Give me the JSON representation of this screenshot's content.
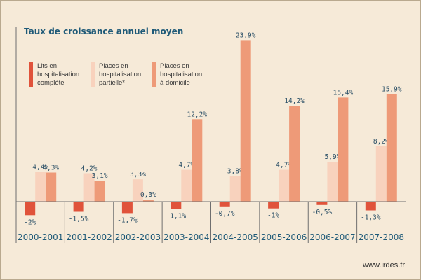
{
  "chart_data": {
    "type": "bar",
    "title": "Taux de croissance annuel moyen",
    "categories": [
      "2000-2001",
      "2001-2002",
      "2002-2003",
      "2003-2004",
      "2004-2005",
      "2005-2006",
      "2006-2007",
      "2007-2008"
    ],
    "series": [
      {
        "name": "Lits en hospitalisation complète",
        "legend_lines": [
          "Lits en",
          "hospitalisation",
          "complète"
        ],
        "color": "#e0533b",
        "values": [
          -2,
          -1.5,
          -1.7,
          -1.1,
          -0.7,
          -1,
          -0.5,
          -1.3
        ],
        "labels": [
          "-2%",
          "-1,5%",
          "-1,7%",
          "-1,1%",
          "-0,7%",
          "-1%",
          "-0,5%",
          "-1,3%"
        ]
      },
      {
        "name": "Places en hospitalisation partielle*",
        "legend_lines": [
          "Places en",
          "hospitalisation",
          "partielle*"
        ],
        "color": "#f8d2bd",
        "values": [
          4.4,
          4.2,
          3.3,
          4.7,
          3.8,
          4.7,
          5.9,
          8.2
        ],
        "labels": [
          "4,4%",
          "4,2%",
          "3,3%",
          "4,7%",
          "3,8%",
          "4,7%",
          "5,9%",
          "8,2%"
        ]
      },
      {
        "name": "Places en hospitalisation à domicile",
        "legend_lines": [
          "Places en",
          "hospitalisation",
          "à domicile"
        ],
        "color": "#ee9a78",
        "values": [
          4.3,
          3.1,
          0.3,
          12.2,
          23.9,
          14.2,
          15.4,
          15.9
        ],
        "labels": [
          "4,3%",
          "3,1%",
          "0,3%",
          "12,2%",
          "23,9%",
          "14,2%",
          "15,4%",
          "15,9%"
        ]
      }
    ],
    "ylim": [
      -3.2,
      25
    ],
    "grid": false,
    "legend_position": "top-left"
  },
  "source": "www.irdes.fr"
}
